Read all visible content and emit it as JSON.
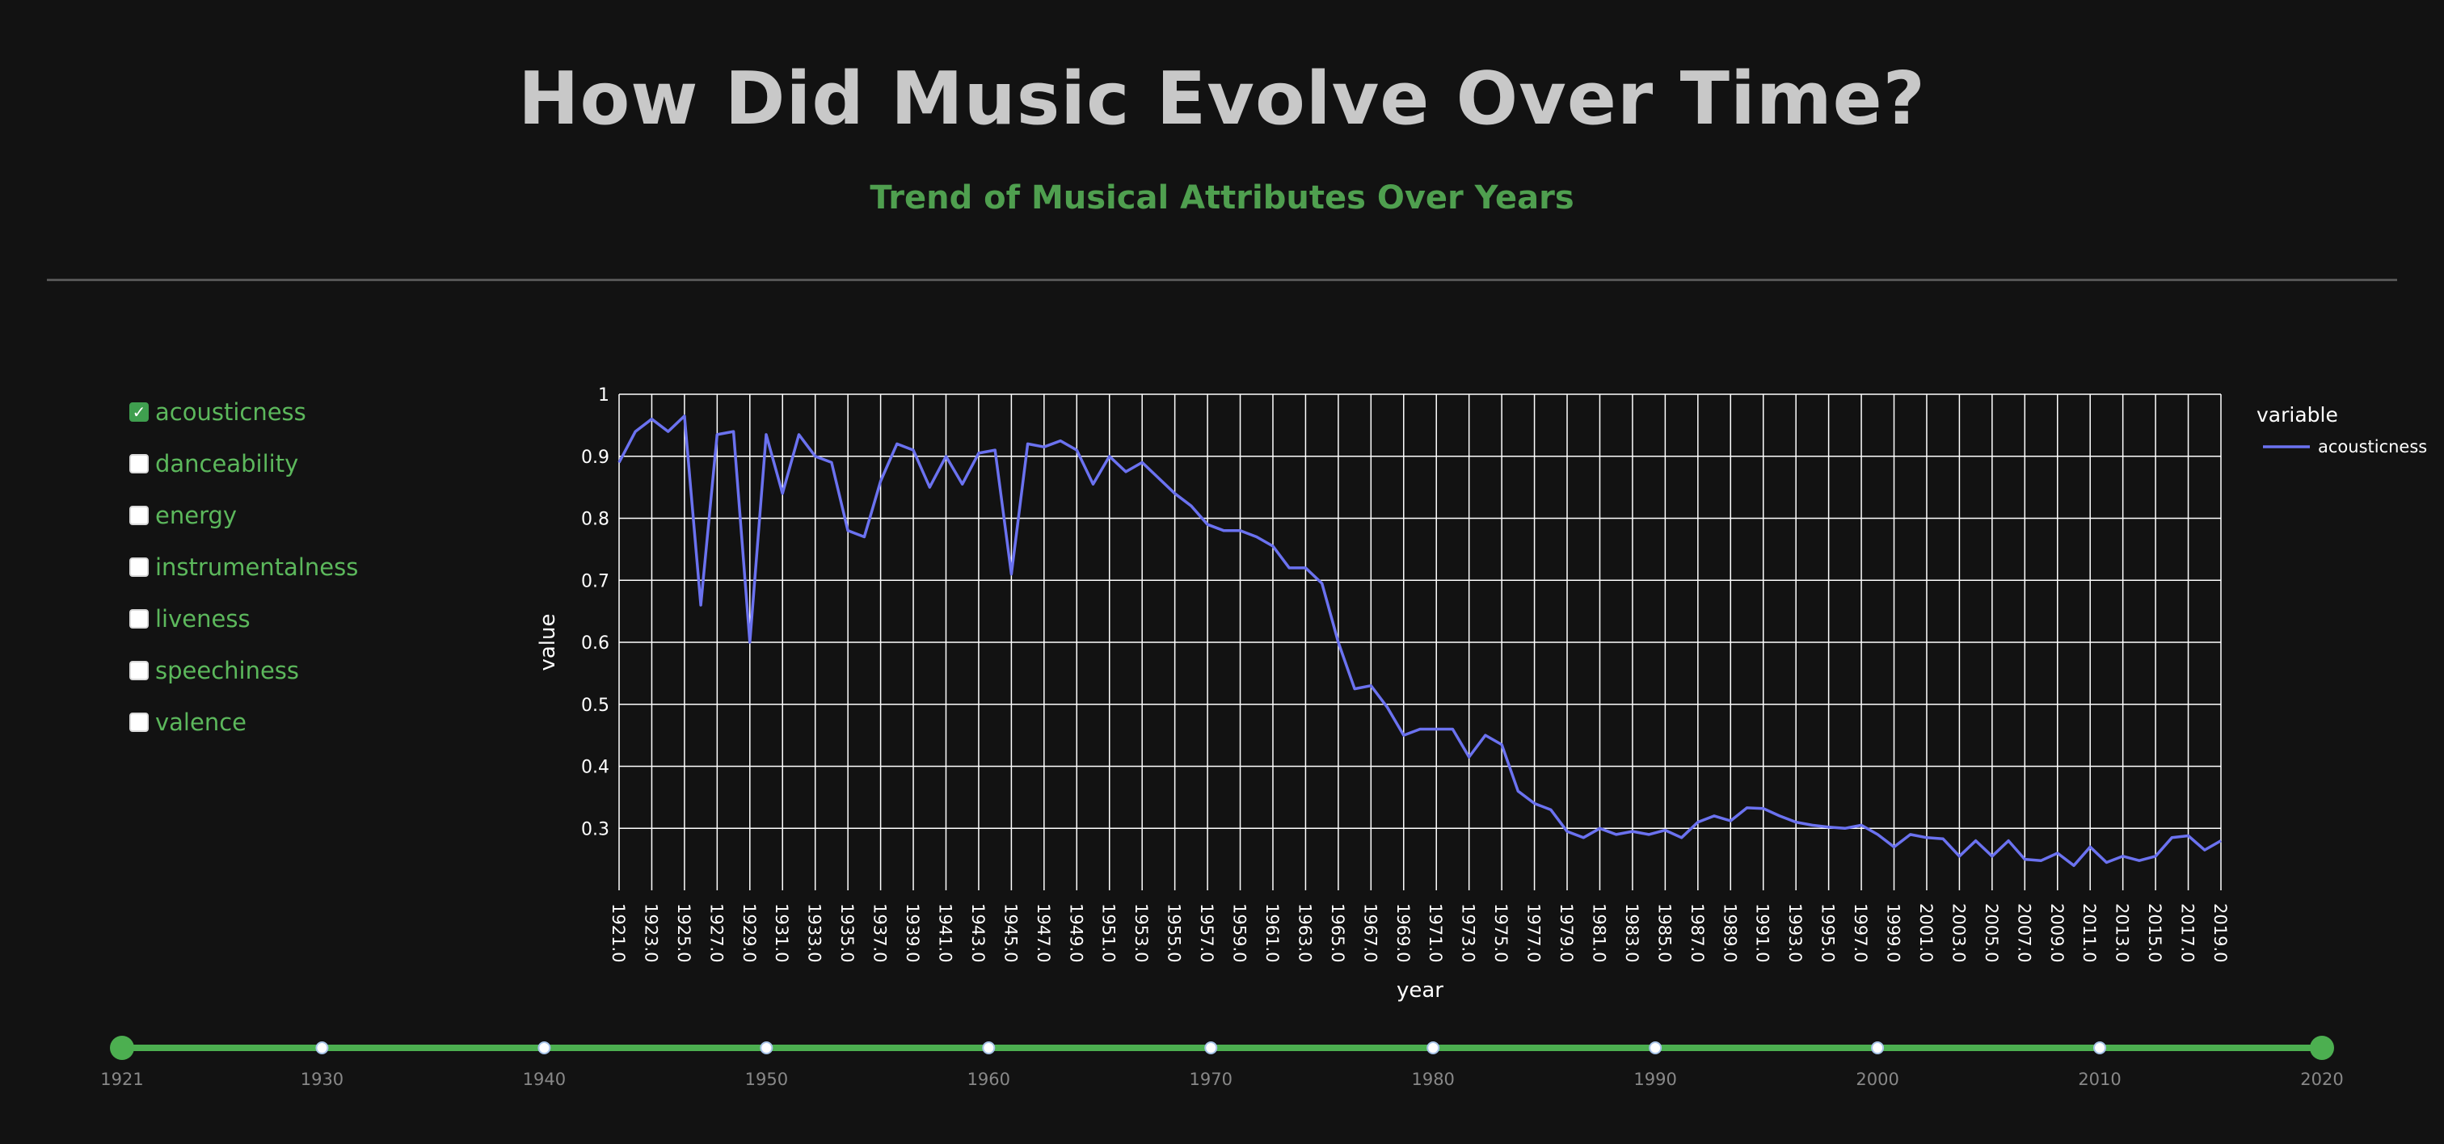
{
  "header": {
    "title": "How Did Music Evolve Over Time?",
    "subtitle": "Trend of Musical Attributes Over Years"
  },
  "variables": [
    {
      "label": "acousticness",
      "checked": true
    },
    {
      "label": "danceability",
      "checked": false
    },
    {
      "label": "energy",
      "checked": false
    },
    {
      "label": "instrumentalness",
      "checked": false
    },
    {
      "label": "liveness",
      "checked": false
    },
    {
      "label": "speechiness",
      "checked": false
    },
    {
      "label": "valence",
      "checked": false
    }
  ],
  "colors": {
    "line": "#6b72f0",
    "accent": "#4caf50",
    "title": "#c8c8c8",
    "subtitle": "#4f9f4f",
    "grid": "#ffffff"
  },
  "chart_data": {
    "type": "line",
    "xlabel": "year",
    "ylabel": "value",
    "legend_title": "variable",
    "legend_position": "right",
    "grid": true,
    "ylim": [
      0.2,
      1
    ],
    "y_ticks": [
      "0.3",
      "0.4",
      "0.5",
      "0.6",
      "0.7",
      "0.8",
      "0.9",
      "1"
    ],
    "x_tick_labels": [
      "1921.0",
      "1923.0",
      "1925.0",
      "1927.0",
      "1929.0",
      "1931.0",
      "1933.0",
      "1935.0",
      "1937.0",
      "1939.0",
      "1941.0",
      "1943.0",
      "1945.0",
      "1947.0",
      "1949.0",
      "1951.0",
      "1953.0",
      "1955.0",
      "1957.0",
      "1959.0",
      "1961.0",
      "1963.0",
      "1965.0",
      "1967.0",
      "1969.0",
      "1971.0",
      "1973.0",
      "1975.0",
      "1977.0",
      "1979.0",
      "1981.0",
      "1983.0",
      "1985.0",
      "1987.0",
      "1989.0",
      "1991.0",
      "1993.0",
      "1995.0",
      "1997.0",
      "1999.0",
      "2001.0",
      "2003.0",
      "2005.0",
      "2007.0",
      "2009.0",
      "2011.0",
      "2013.0",
      "2015.0",
      "2017.0",
      "2019.0"
    ],
    "x": [
      1921,
      1922,
      1923,
      1924,
      1925,
      1926,
      1927,
      1928,
      1929,
      1930,
      1931,
      1932,
      1933,
      1934,
      1935,
      1936,
      1937,
      1938,
      1939,
      1940,
      1941,
      1942,
      1943,
      1944,
      1945,
      1946,
      1947,
      1948,
      1949,
      1950,
      1951,
      1952,
      1953,
      1954,
      1955,
      1956,
      1957,
      1958,
      1959,
      1960,
      1961,
      1962,
      1963,
      1964,
      1965,
      1966,
      1967,
      1968,
      1969,
      1970,
      1971,
      1972,
      1973,
      1974,
      1975,
      1976,
      1977,
      1978,
      1979,
      1980,
      1981,
      1982,
      1983,
      1984,
      1985,
      1986,
      1987,
      1988,
      1989,
      1990,
      1991,
      1992,
      1993,
      1994,
      1995,
      1996,
      1997,
      1998,
      1999,
      2000,
      2001,
      2002,
      2003,
      2004,
      2005,
      2006,
      2007,
      2008,
      2009,
      2010,
      2011,
      2012,
      2013,
      2014,
      2015,
      2016,
      2017,
      2018,
      2019,
      2020
    ],
    "series": [
      {
        "name": "acousticness",
        "values": [
          0.89,
          0.94,
          0.96,
          0.94,
          0.965,
          0.66,
          0.935,
          0.94,
          0.6,
          0.935,
          0.84,
          0.935,
          0.9,
          0.89,
          0.78,
          0.77,
          0.86,
          0.92,
          0.91,
          0.85,
          0.9,
          0.855,
          0.905,
          0.91,
          0.71,
          0.92,
          0.915,
          0.925,
          0.91,
          0.855,
          0.9,
          0.875,
          0.89,
          0.865,
          0.84,
          0.82,
          0.79,
          0.78,
          0.78,
          0.77,
          0.755,
          0.72,
          0.72,
          0.695,
          0.6,
          0.525,
          0.53,
          0.495,
          0.45,
          0.46,
          0.46,
          0.46,
          0.415,
          0.45,
          0.435,
          0.36,
          0.34,
          0.33,
          0.295,
          0.285,
          0.3,
          0.29,
          0.295,
          0.29,
          0.297,
          0.285,
          0.31,
          0.32,
          0.312,
          0.333,
          0.332,
          0.32,
          0.31,
          0.305,
          0.302,
          0.3,
          0.305,
          0.29,
          0.27,
          0.29,
          0.285,
          0.283,
          0.255,
          0.28,
          0.255,
          0.28,
          0.25,
          0.248,
          0.26,
          0.24,
          0.27,
          0.245,
          0.255,
          0.248,
          0.255,
          0.285,
          0.288,
          0.265,
          0.28,
          0.285
        ]
      }
    ]
  },
  "slider": {
    "min_label": "1921",
    "max_label": "2020",
    "tick_labels": [
      "1921",
      "1930",
      "1940",
      "1950",
      "1960",
      "1970",
      "1980",
      "1990",
      "2000",
      "2010",
      "2020"
    ],
    "tick_values": [
      1921,
      1930,
      1940,
      1950,
      1960,
      1970,
      1980,
      1990,
      2000,
      2010,
      2020
    ],
    "selected_range": [
      1921,
      2020
    ]
  }
}
